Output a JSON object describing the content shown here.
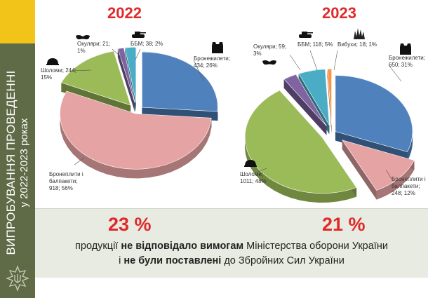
{
  "sidebar": {
    "title_line1": "ВИПРОБУВАННЯ ПРОВЕДЕННІ",
    "title_line2": "у 2022-2023 роках",
    "colors": {
      "panel": "#5f6a46",
      "accent": "#f2c319"
    }
  },
  "colors": {
    "accent_red": "#e0292a",
    "band": "#e8ebe1"
  },
  "chart_data": [
    {
      "type": "pie",
      "title": "2022",
      "slices": [
        {
          "name": "Бронежилети",
          "value": 434,
          "percent": 26,
          "color": "#4f81bd",
          "label_lines": [
            "Бронежилети;",
            "434; 26%"
          ],
          "icon": "vest-icon"
        },
        {
          "name": "Бронеплити і балпакети",
          "value": 918,
          "percent": 56,
          "color": "#e6a3a3",
          "label_lines": [
            "Бронеплити і",
            "балпакети;",
            "918; 56%"
          ]
        },
        {
          "name": "Шоломи",
          "value": 244,
          "percent": 15,
          "color": "#9bbb59",
          "label_lines": [
            "Шоломи; 244;",
            "15%"
          ],
          "icon": "helmet-icon"
        },
        {
          "name": "Окуляри",
          "value": 21,
          "percent": 1,
          "color": "#8064a2",
          "label_lines": [
            "Окуляри; 21;",
            "1%"
          ],
          "icon": "goggles-icon"
        },
        {
          "name": "ББМ",
          "value": 38,
          "percent": 2,
          "color": "#4bacc6",
          "label_lines": [
            "ББМ; 38; 2%"
          ],
          "icon": "tank-icon"
        }
      ]
    },
    {
      "type": "pie",
      "title": "2023",
      "slices": [
        {
          "name": "Бронежилети",
          "value": 650,
          "percent": 31,
          "color": "#4f81bd",
          "label_lines": [
            "Бронежилети;",
            "650; 31%"
          ],
          "icon": "vest-icon"
        },
        {
          "name": "Бронеплити і балпакети",
          "value": 248,
          "percent": 12,
          "color": "#e6a3a3",
          "label_lines": [
            "Бронеплити і",
            "балпакети;",
            "248; 12%"
          ]
        },
        {
          "name": "Шоломи",
          "value": 1011,
          "percent": 48,
          "color": "#9bbb59",
          "label_lines": [
            "Шоломи;",
            "1011; 48%"
          ],
          "icon": "helmet-icon"
        },
        {
          "name": "Окуляри",
          "value": 59,
          "percent": 3,
          "color": "#8064a2",
          "label_lines": [
            "Окуляри; 59;",
            "3%"
          ],
          "icon": "goggles-icon"
        },
        {
          "name": "ББМ",
          "value": 118,
          "percent": 5,
          "color": "#4bacc6",
          "label_lines": [
            "ББМ; 118; 5%"
          ],
          "icon": "tank-icon"
        },
        {
          "name": "Вибухи",
          "value": 18,
          "percent": 1,
          "color": "#f79646",
          "label_lines": [
            "Вибухи; 18; 1%"
          ],
          "icon": "explosion-icon"
        }
      ]
    }
  ],
  "summary": {
    "pct_2022": "23 %",
    "pct_2023": "21 %",
    "line1": {
      "a": "продукції ",
      "b": "не відповідало вимогам",
      "c": " Міністерства оборони України"
    },
    "line2": {
      "a": "і ",
      "b": "не були поставлені",
      "c": " до Збройних Сил України"
    }
  }
}
